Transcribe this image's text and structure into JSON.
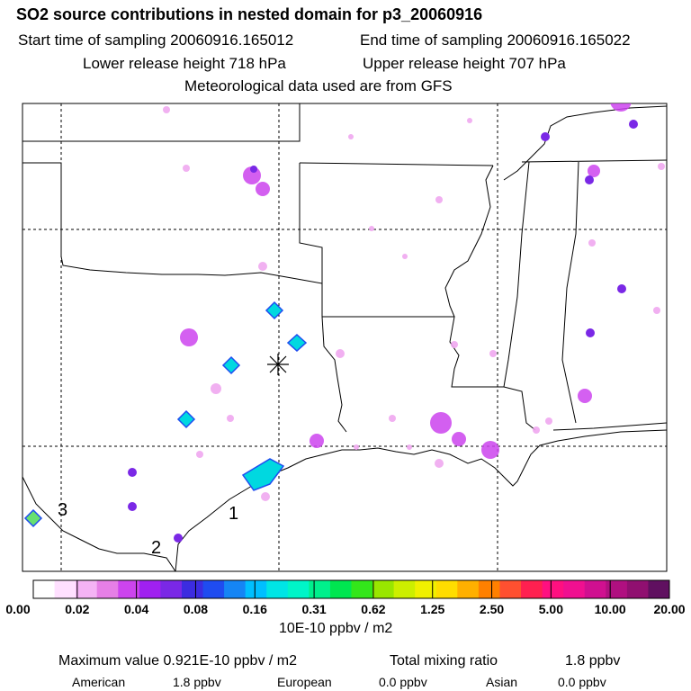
{
  "header": {
    "title": "SO2 source contributions in nested domain for p3_20060916",
    "start_time": "Start time of sampling 20060916.165012",
    "end_time": "End time of sampling 20060916.165022",
    "lower_release": "Lower release height  718 hPa",
    "upper_release": "Upper release height  707 hPa",
    "met_data": "Meteorological data used are from GFS"
  },
  "map": {
    "labels": [
      "1",
      "2",
      "3"
    ],
    "source_marker": "asterisk-icon"
  },
  "colorbar": {
    "ticks": [
      "0.00",
      "0.02",
      "0.04",
      "0.08",
      "0.16",
      "0.31",
      "0.62",
      "1.25",
      "2.50",
      "5.00",
      "10.00",
      "20.00"
    ],
    "units": "10E-10 ppbv / m2",
    "colors": [
      "#ffffff",
      "#ffe0ff",
      "#f5b3f5",
      "#e67fe6",
      "#cc44ee",
      "#a020f0",
      "#7a28e6",
      "#3c2ce0",
      "#1f4cf0",
      "#1585f5",
      "#00bfff",
      "#00e5e5",
      "#00f5c8",
      "#00f08c",
      "#00e650",
      "#33e61a",
      "#99e600",
      "#ccef00",
      "#f0f000",
      "#ffdd00",
      "#ffb000",
      "#ff8000",
      "#ff5030",
      "#ff2050",
      "#ff1080",
      "#f01090",
      "#d01090",
      "#b01080",
      "#901070",
      "#601060"
    ]
  },
  "footer": {
    "max_label": "Maximum value  0.921E-10 ppbv / m2",
    "total_label": "Total mixing ratio",
    "total_value": "1.8 ppbv",
    "american_label": "American",
    "american_value": "1.8 ppbv",
    "european_label": "European",
    "european_value": "0.0 ppbv",
    "asian_label": "Asian",
    "asian_value": "0.0 ppbv"
  }
}
